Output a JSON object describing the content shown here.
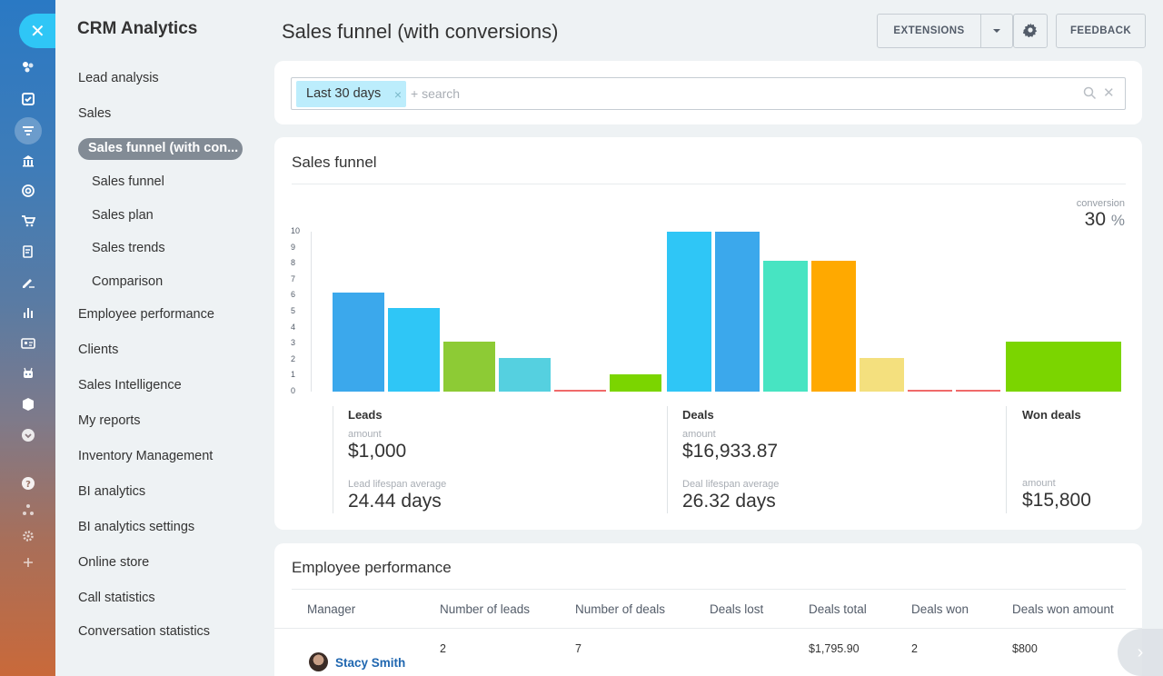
{
  "menu": {
    "title": "CRM Analytics",
    "items": [
      {
        "label": "Lead analysis"
      },
      {
        "label": "Sales"
      },
      {
        "label": "Employee performance"
      },
      {
        "label": "Clients"
      },
      {
        "label": "Sales Intelligence"
      },
      {
        "label": "My reports"
      },
      {
        "label": "Inventory Management"
      },
      {
        "label": "BI analytics"
      },
      {
        "label": "BI analytics settings"
      },
      {
        "label": "Online store"
      },
      {
        "label": "Call statistics"
      },
      {
        "label": "Conversation statistics"
      }
    ],
    "sub_items": [
      {
        "label": "Sales funnel (with con...",
        "active": true
      },
      {
        "label": "Sales funnel"
      },
      {
        "label": "Sales plan"
      },
      {
        "label": "Sales trends"
      },
      {
        "label": "Comparison"
      }
    ]
  },
  "header": {
    "title": "Sales funnel (with conversions)",
    "extensions_label": "EXTENSIONS",
    "feedback_label": "FEEDBACK"
  },
  "filter": {
    "chip_label": "Last 30 days",
    "chip_remove": "×",
    "placeholder": "+ search",
    "clear": "✕"
  },
  "funnel": {
    "title": "Sales funnel",
    "conversion_label": "conversion",
    "conversion_value": "30",
    "conversion_unit": "%",
    "columns": {
      "leads": {
        "title": "Leads",
        "amount_label": "amount",
        "amount": "$1,000",
        "lifespan_label": "Lead lifespan average",
        "lifespan": "24.44 days"
      },
      "deals": {
        "title": "Deals",
        "amount_label": "amount",
        "amount": "$16,933.87",
        "lifespan_label": "Deal lifespan average",
        "lifespan": "26.32 days"
      },
      "won": {
        "title": "Won deals",
        "amount_label": "amount",
        "amount": "$15,800"
      }
    }
  },
  "chart_data": {
    "type": "bar",
    "y_ticks": [
      "0",
      "1",
      "2",
      "3",
      "4",
      "5",
      "6",
      "7",
      "8",
      "9",
      "10"
    ],
    "ylim": [
      0,
      10
    ],
    "groups": [
      {
        "name": "Leads",
        "values": [
          6.2,
          5.2,
          3.1,
          2.1,
          0.1,
          1.1
        ],
        "colors": [
          "#3ba8ec",
          "#2fc6f6",
          "#8dcb35",
          "#55d0e0",
          "#f06a6a",
          "#7bd500"
        ]
      },
      {
        "name": "Deals",
        "values": [
          10,
          10,
          8.2,
          8.2,
          2.1,
          0.1,
          0.1
        ],
        "colors": [
          "#2fc6f6",
          "#3ba8ec",
          "#47e4c2",
          "#ffa900",
          "#f4e07e",
          "#f06a6a",
          "#f06a6a"
        ]
      },
      {
        "name": "Won deals",
        "values": [
          3.1
        ],
        "colors": [
          "#7bd500"
        ]
      }
    ]
  },
  "employees": {
    "title": "Employee performance",
    "headers": [
      "Manager",
      "Number of leads",
      "Number of deals",
      "Deals lost",
      "Deals total",
      "Deals won",
      "Deals won amount"
    ],
    "rows": [
      {
        "manager": "Stacy Smith",
        "leads": "2",
        "deals": "7",
        "lost": "",
        "total": "$1,795.90",
        "won": "2",
        "won_amount": "$800"
      }
    ]
  }
}
